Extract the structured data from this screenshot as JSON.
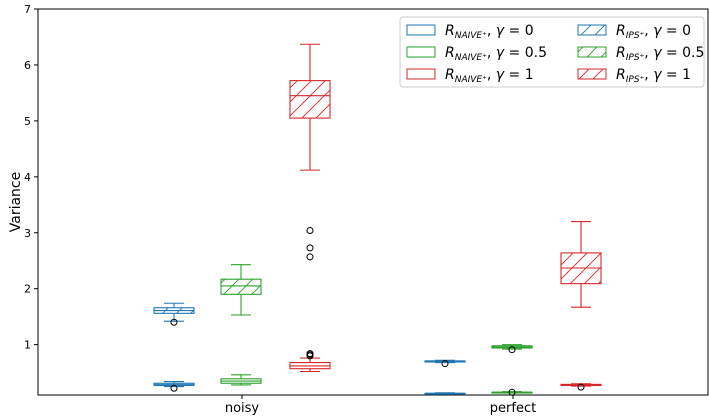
{
  "chart_data": {
    "type": "box",
    "ylabel": "Variance",
    "ylim": [
      0.1,
      7
    ],
    "yticks": [
      1,
      2,
      3,
      4,
      5,
      6,
      7
    ],
    "categories": [
      "noisy",
      "perfect"
    ],
    "legend_placement": "top-right",
    "series": [
      {
        "name": "R_{NAIVE+}, γ=0",
        "estimator": "NAIVE",
        "gamma": "0",
        "hatched": false,
        "color": "#1f77b4",
        "boxes": [
          {
            "category": "noisy",
            "whisker_low": 0.25,
            "q1": 0.27,
            "median": 0.29,
            "q3": 0.31,
            "whisker_high": 0.34,
            "outliers": [
              0.22
            ]
          },
          {
            "category": "perfect",
            "whisker_low": 0.12,
            "q1": 0.12,
            "median": 0.13,
            "q3": 0.13,
            "whisker_high": 0.14,
            "outliers": []
          }
        ]
      },
      {
        "name": "R_{NAIVE+}, γ=0.5",
        "estimator": "NAIVE",
        "gamma": "0.5",
        "hatched": false,
        "color": "#2ca02c",
        "boxes": [
          {
            "category": "noisy",
            "whisker_low": 0.28,
            "q1": 0.31,
            "median": 0.35,
            "q3": 0.39,
            "whisker_high": 0.46,
            "outliers": []
          },
          {
            "category": "perfect",
            "whisker_low": 0.14,
            "q1": 0.14,
            "median": 0.15,
            "q3": 0.15,
            "whisker_high": 0.16,
            "outliers": [
              0.15
            ]
          }
        ]
      },
      {
        "name": "R_{NAIVE+}, γ=1",
        "estimator": "NAIVE",
        "gamma": "1",
        "hatched": false,
        "color": "#d62728",
        "boxes": [
          {
            "category": "noisy",
            "whisker_low": 0.52,
            "q1": 0.57,
            "median": 0.62,
            "q3": 0.68,
            "whisker_high": 0.76,
            "outliers": [
              0.8,
              0.82,
              0.84
            ]
          },
          {
            "category": "perfect",
            "whisker_low": 0.26,
            "q1": 0.27,
            "median": 0.28,
            "q3": 0.29,
            "whisker_high": 0.3,
            "outliers": [
              0.24
            ]
          }
        ]
      },
      {
        "name": "R_{IPS+}, γ=0",
        "estimator": "IPS",
        "gamma": "0",
        "hatched": true,
        "color": "#1f77b4",
        "boxes": [
          {
            "category": "noisy",
            "whisker_low": 1.42,
            "q1": 1.56,
            "median": 1.61,
            "q3": 1.66,
            "whisker_high": 1.74,
            "outliers": [
              1.4
            ]
          },
          {
            "category": "perfect",
            "whisker_low": 0.68,
            "q1": 0.69,
            "median": 0.7,
            "q3": 0.71,
            "whisker_high": 0.72,
            "outliers": [
              0.66
            ]
          }
        ]
      },
      {
        "name": "R_{IPS+}, γ=0.5",
        "estimator": "IPS",
        "gamma": "0.5",
        "hatched": true,
        "color": "#2ca02c",
        "boxes": [
          {
            "category": "noisy",
            "whisker_low": 1.53,
            "q1": 1.9,
            "median": 2.05,
            "q3": 2.17,
            "whisker_high": 2.43,
            "outliers": []
          },
          {
            "category": "perfect",
            "whisker_low": 0.92,
            "q1": 0.94,
            "median": 0.96,
            "q3": 0.98,
            "whisker_high": 1.0,
            "outliers": [
              0.91
            ]
          }
        ]
      },
      {
        "name": "R_{IPS+}, γ=1",
        "estimator": "IPS",
        "gamma": "1",
        "hatched": true,
        "color": "#d62728",
        "boxes": [
          {
            "category": "noisy",
            "whisker_low": 4.12,
            "q1": 5.05,
            "median": 5.45,
            "q3": 5.72,
            "whisker_high": 6.37,
            "outliers": [
              3.04,
              2.73,
              2.57
            ]
          },
          {
            "category": "perfect",
            "whisker_low": 1.67,
            "q1": 2.09,
            "median": 2.37,
            "q3": 2.64,
            "whisker_high": 3.2,
            "outliers": []
          }
        ]
      }
    ]
  }
}
